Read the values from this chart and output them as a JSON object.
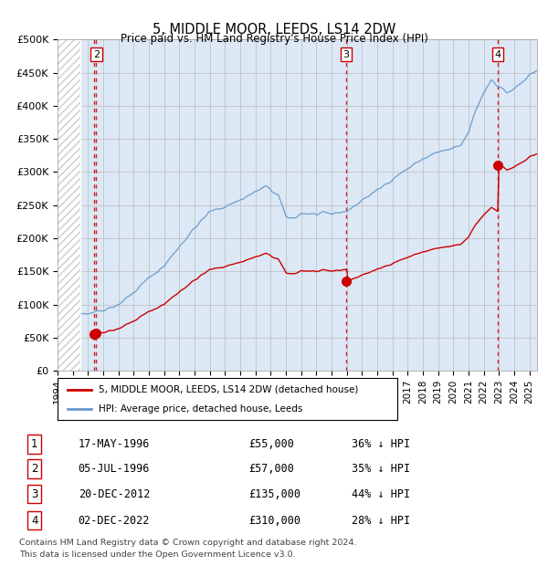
{
  "title": "5, MIDDLE MOOR, LEEDS, LS14 2DW",
  "subtitle": "Price paid vs. HM Land Registry's House Price Index (HPI)",
  "ylim": [
    0,
    500000
  ],
  "yticks": [
    0,
    50000,
    100000,
    150000,
    200000,
    250000,
    300000,
    350000,
    400000,
    450000,
    500000
  ],
  "ytick_labels": [
    "£0",
    "£50K",
    "£100K",
    "£150K",
    "£200K",
    "£250K",
    "£300K",
    "£350K",
    "£400K",
    "£450K",
    "£500K"
  ],
  "xlim_start": 1994.0,
  "xlim_end": 2025.5,
  "hatch_end": 1995.5,
  "transactions": [
    {
      "num": 1,
      "year": 1996.38,
      "price": 55000,
      "date": "17-MAY-1996",
      "pct": "36% ↓ HPI"
    },
    {
      "num": 2,
      "year": 1996.54,
      "price": 57000,
      "date": "05-JUL-1996",
      "pct": "35% ↓ HPI"
    },
    {
      "num": 3,
      "year": 2012.97,
      "price": 135000,
      "date": "20-DEC-2012",
      "pct": "44% ↓ HPI"
    },
    {
      "num": 4,
      "year": 2022.92,
      "price": 310000,
      "date": "02-DEC-2022",
      "pct": "28% ↓ HPI"
    }
  ],
  "legend_line1": "5, MIDDLE MOOR, LEEDS, LS14 2DW (detached house)",
  "legend_line2": "HPI: Average price, detached house, Leeds",
  "footer_line1": "Contains HM Land Registry data © Crown copyright and database right 2024.",
  "footer_line2": "This data is licensed under the Open Government Licence v3.0.",
  "red_color": "#cc0000",
  "blue_color": "#6699cc",
  "blue_fill": "#dce8f5",
  "bg_color": "#dce8f5",
  "grid_color": "#bbbbbb",
  "hatch_color": "#cccccc"
}
